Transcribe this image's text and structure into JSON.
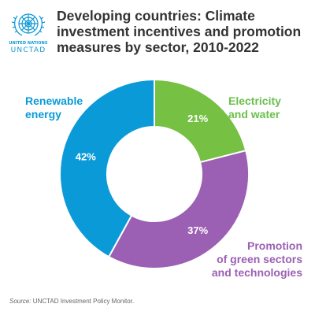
{
  "logo": {
    "icon": "un-emblem-icon",
    "line1": "UNITED NATIONS",
    "line2": "UNCTAD"
  },
  "chart_data": {
    "type": "pie",
    "donut": true,
    "title": "Developing countries: Climate investment incentives and promotion measures by sector, 2010-2022",
    "unit": "%",
    "series": [
      {
        "name": "Electricity and water",
        "value": 21,
        "label": "21%",
        "color": "#76c043"
      },
      {
        "name": "Promotion of green sectors and technologies",
        "value": 37,
        "label": "37%",
        "color": "#9b5fb3"
      },
      {
        "name": "Renewable energy",
        "value": 42,
        "label": "42%",
        "color": "#0b9ad8"
      }
    ],
    "categories": {
      "renewable": "Renewable energy",
      "electricity": "Electricity and water",
      "promotion": "Promotion of green sectors and technologies"
    },
    "category_lines": {
      "renewable": [
        "Renewable",
        "energy"
      ],
      "electricity": [
        "Electricity",
        "and water"
      ],
      "promotion": [
        "Promotion",
        "of green sectors",
        "and technologies"
      ]
    },
    "source_prefix": "Source:",
    "source_text": " UNCTAD Investment Policy Monitor."
  }
}
